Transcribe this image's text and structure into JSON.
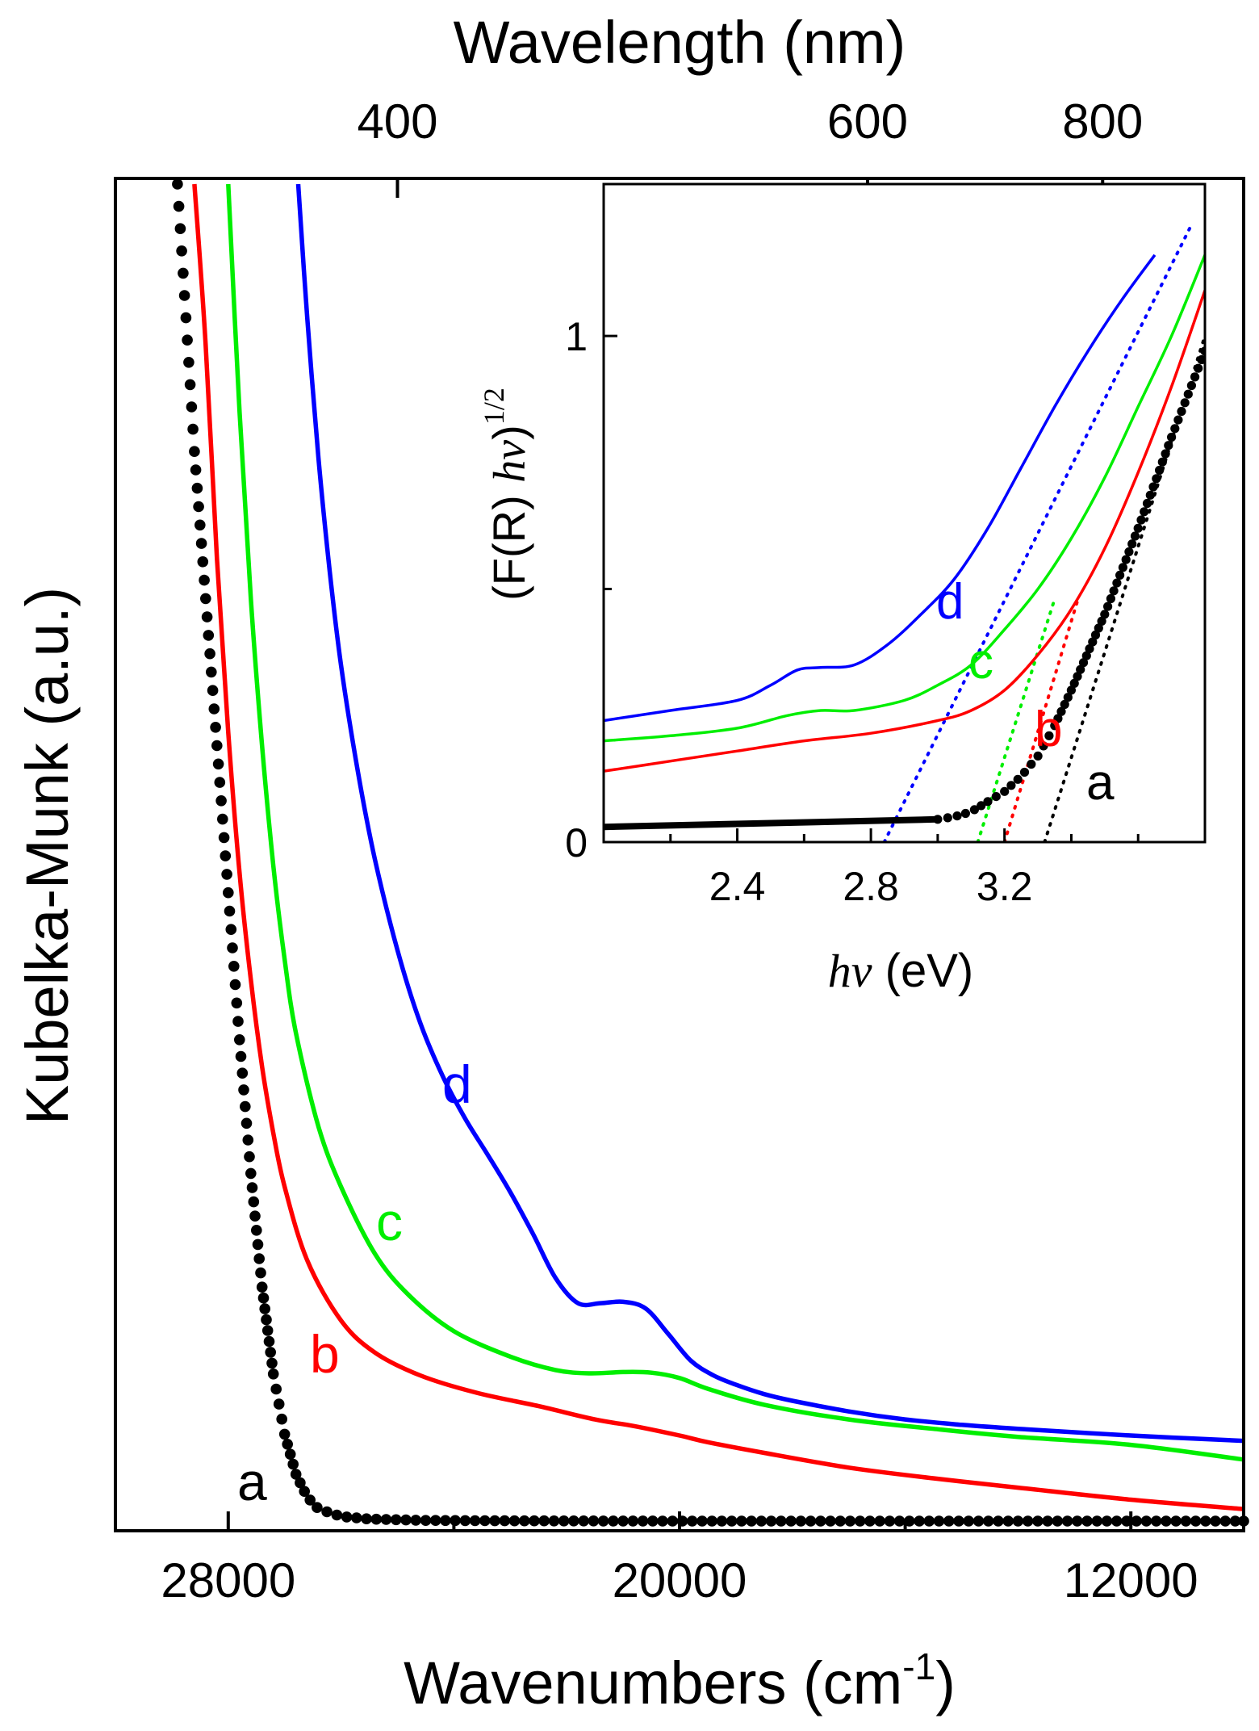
{
  "chart_data": [
    {
      "type": "line",
      "title": "",
      "xlabel": "Wavenumbers (cm",
      "xlabel_sup": "-1",
      "xlabel_close": ")",
      "ylabel": "Kubelka-Munk (a.u.)",
      "x2label": "Wavelength (nm)",
      "xlim": [
        30000,
        10000
      ],
      "ylim": [
        0,
        100
      ],
      "x_ticks": [
        28000,
        20000,
        12000
      ],
      "x_minor_ticks": [
        24000,
        16000
      ],
      "x2_ticks": [
        {
          "label": "400",
          "wavenumber": 25000
        },
        {
          "label": "600",
          "wavenumber": 16667
        },
        {
          "label": "800",
          "wavenumber": 12500
        }
      ],
      "series": [
        {
          "name": "a",
          "label": "a",
          "color": "#000000",
          "style": "dots",
          "x": [
            28900,
            28750,
            28600,
            28400,
            28200,
            28000,
            27800,
            27600,
            27400,
            27200,
            27000,
            26800,
            26600,
            26400,
            26000,
            25500,
            24500,
            23000,
            20000,
            16000,
            12000,
            10000
          ],
          "y": [
            100,
            90,
            80,
            69,
            58,
            47,
            36,
            26,
            17.5,
            11,
            6.5,
            3.5,
            1.8,
            0.9,
            0.35,
            0.15,
            0.05,
            0.02,
            0.0,
            -0.05,
            -0.08,
            -0.1
          ]
        },
        {
          "name": "b",
          "label": "b",
          "color": "#ff0000",
          "style": "line",
          "x": [
            28600,
            28400,
            28200,
            28000,
            27800,
            27600,
            27400,
            27200,
            27000,
            26600,
            26000,
            25400,
            24600,
            23600,
            22500,
            21500,
            20800,
            20000,
            19500,
            18500,
            17000,
            15500,
            14000,
            12000,
            10000
          ],
          "y": [
            100,
            88,
            72,
            59,
            48.5,
            40.5,
            34,
            29,
            25,
            19.5,
            15,
            12.6,
            10.9,
            9.6,
            8.6,
            7.6,
            7.1,
            6.4,
            5.9,
            5.1,
            4.0,
            3.2,
            2.5,
            1.6,
            0.9
          ]
        },
        {
          "name": "c",
          "label": "c",
          "color": "#00ee00",
          "style": "line",
          "x": [
            28000,
            27800,
            27600,
            27400,
            27200,
            27000,
            26800,
            26400,
            26000,
            25400,
            24800,
            24000,
            23000,
            22200,
            21600,
            21000,
            20500,
            20000,
            19500,
            18500,
            17000,
            15500,
            14000,
            12000,
            10000
          ],
          "y": [
            100,
            83,
            69,
            58,
            49,
            42,
            36.5,
            29.5,
            25,
            20,
            16.9,
            14.2,
            12.3,
            11.3,
            11.05,
            11.15,
            11.1,
            10.7,
            9.9,
            8.7,
            7.6,
            6.9,
            6.3,
            5.7,
            4.6
          ]
        },
        {
          "name": "d",
          "label": "d",
          "color": "#0000ff",
          "style": "line",
          "x": [
            26760,
            26600,
            26400,
            26200,
            26000,
            25700,
            25400,
            25000,
            24600,
            24200,
            23800,
            23400,
            23000,
            22600,
            22200,
            21800,
            21400,
            21000,
            20600,
            20200,
            19800,
            19400,
            19000,
            18500,
            18000,
            17000,
            16000,
            15000,
            14000,
            12000,
            10000
          ],
          "y": [
            100,
            90,
            79.5,
            71,
            64,
            56,
            49.5,
            42.7,
            37.3,
            33.3,
            30.1,
            27.4,
            24.6,
            21.5,
            18.2,
            16.3,
            16.3,
            16.4,
            15.9,
            14,
            12,
            10.9,
            10.2,
            9.5,
            9,
            8.2,
            7.6,
            7.2,
            6.9,
            6.4,
            6.0
          ]
        }
      ],
      "annotations": [
        {
          "text": "a",
          "color": "#000000"
        },
        {
          "text": "b",
          "color": "#ff0000"
        },
        {
          "text": "c",
          "color": "#00ee00"
        },
        {
          "text": "d",
          "color": "#0000ff"
        }
      ]
    },
    {
      "type": "line",
      "title": "inset",
      "xlabel_italic": "hν",
      "xlabel_rest": " (eV)",
      "ylabel_main": "(F(R) ",
      "ylabel_italic": "hν",
      "ylabel_close": ")",
      "ylabel_sup": "1/2",
      "xlim": [
        2.0,
        3.8
      ],
      "ylim": [
        0,
        1.3
      ],
      "x_ticks": [
        2.4,
        2.8,
        3.2
      ],
      "x_minor_ticks": [
        2.2,
        2.6,
        3.0,
        3.4,
        3.6
      ],
      "y_ticks": [
        0,
        1
      ],
      "y_minor_ticks": [
        0.5
      ],
      "series": [
        {
          "name": "a",
          "label": "a",
          "color": "#000000",
          "style": "dots",
          "x": [
            2.0,
            2.4,
            2.8,
            2.95,
            3.05,
            3.1,
            3.15,
            3.2,
            3.25,
            3.3,
            3.35,
            3.4,
            3.5,
            3.6,
            3.7,
            3.8
          ],
          "y": [
            0.03,
            0.03,
            0.033,
            0.04,
            0.05,
            0.06,
            0.08,
            0.1,
            0.13,
            0.17,
            0.23,
            0.3,
            0.45,
            0.62,
            0.8,
            0.97
          ]
        },
        {
          "name": "b",
          "label": "b",
          "color": "#ff0000",
          "style": "line",
          "x": [
            2.0,
            2.2,
            2.4,
            2.6,
            2.8,
            3.0,
            3.1,
            3.2,
            3.3,
            3.4,
            3.5,
            3.6,
            3.7,
            3.8
          ],
          "y": [
            0.14,
            0.16,
            0.18,
            0.2,
            0.215,
            0.24,
            0.26,
            0.3,
            0.37,
            0.46,
            0.58,
            0.73,
            0.9,
            1.09
          ]
        },
        {
          "name": "c",
          "label": "c",
          "color": "#00ee00",
          "style": "line",
          "x": [
            2.0,
            2.2,
            2.4,
            2.55,
            2.65,
            2.75,
            2.9,
            3.0,
            3.1,
            3.2,
            3.3,
            3.4,
            3.5,
            3.6,
            3.7,
            3.8
          ],
          "y": [
            0.2,
            0.21,
            0.225,
            0.25,
            0.26,
            0.26,
            0.28,
            0.31,
            0.35,
            0.42,
            0.5,
            0.6,
            0.72,
            0.86,
            1.0,
            1.16
          ]
        },
        {
          "name": "d",
          "label": "d",
          "color": "#0000ff",
          "style": "line",
          "x": [
            2.0,
            2.2,
            2.4,
            2.5,
            2.58,
            2.65,
            2.75,
            2.85,
            2.95,
            3.05,
            3.15,
            3.25,
            3.35,
            3.45,
            3.55,
            3.65
          ],
          "y": [
            0.24,
            0.26,
            0.28,
            0.31,
            0.34,
            0.345,
            0.35,
            0.39,
            0.45,
            0.52,
            0.62,
            0.74,
            0.86,
            0.97,
            1.07,
            1.16
          ]
        }
      ],
      "fit_lines": [
        {
          "name": "a-fit",
          "color": "#000000",
          "x": [
            3.32,
            3.8
          ],
          "y": [
            0,
            1.0
          ]
        },
        {
          "name": "b-fit",
          "color": "#ff0000",
          "x": [
            3.2,
            3.42
          ],
          "y": [
            0,
            0.48
          ]
        },
        {
          "name": "c-fit",
          "color": "#00ee00",
          "x": [
            3.12,
            3.35
          ],
          "y": [
            0,
            0.48
          ]
        },
        {
          "name": "d-fit",
          "color": "#0000ff",
          "x": [
            2.84,
            3.76
          ],
          "y": [
            0,
            1.22
          ]
        }
      ],
      "annotations": [
        {
          "text": "a",
          "color": "#000000"
        },
        {
          "text": "b",
          "color": "#ff0000"
        },
        {
          "text": "c",
          "color": "#00ee00"
        },
        {
          "text": "d",
          "color": "#0000ff"
        }
      ]
    }
  ]
}
